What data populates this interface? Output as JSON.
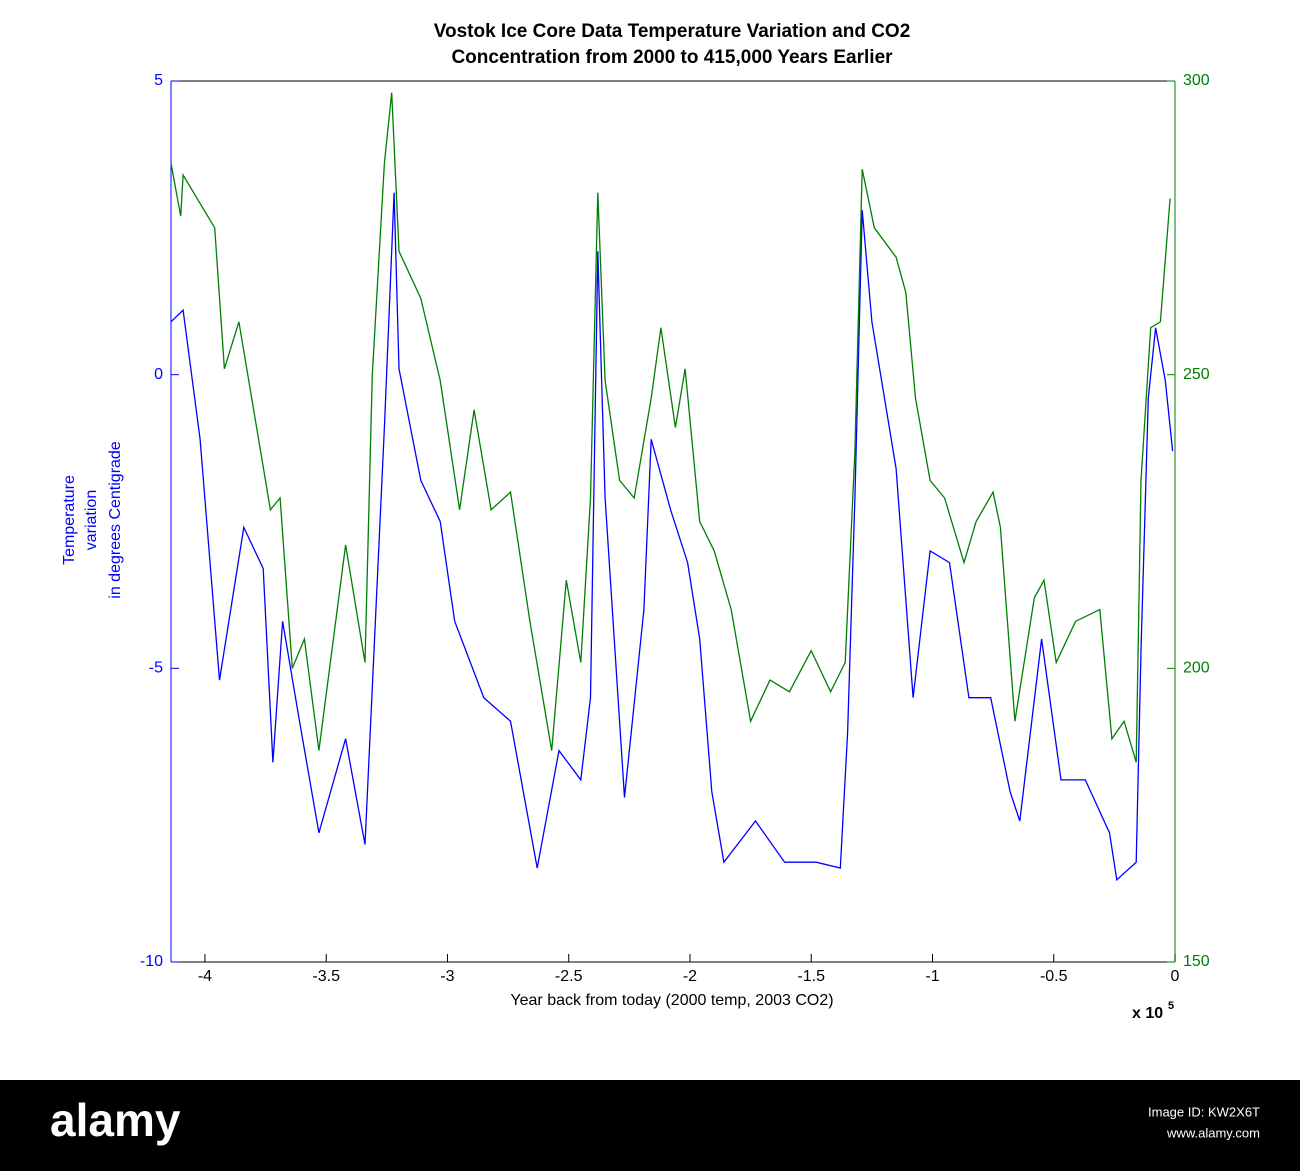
{
  "chart_data": {
    "type": "line",
    "title": [
      "Vostok Ice Core Data Temperature Variation and CO2",
      "Concentration from 2000 to 415,000 Years Earlier"
    ],
    "xlabel": "Year back from today (2000 temp, 2003 CO2)",
    "xlabel_multiplier": "x 10",
    "xlabel_exponent": "5",
    "ylabel": [
      "Temperature",
      "variation",
      "in degrees Centigrade"
    ],
    "xlim": [
      -414000,
      0
    ],
    "xticks": [
      {
        "value": -400000,
        "label": "-4"
      },
      {
        "value": -350000,
        "label": "-3.5"
      },
      {
        "value": -300000,
        "label": "-3"
      },
      {
        "value": -250000,
        "label": "-2.5"
      },
      {
        "value": -200000,
        "label": "-2"
      },
      {
        "value": -150000,
        "label": "-1.5"
      },
      {
        "value": -100000,
        "label": "-1"
      },
      {
        "value": -50000,
        "label": "-0.5"
      },
      0
    ],
    "ylim": [
      -10,
      5
    ],
    "yticks": [
      -10,
      -5,
      0,
      5
    ],
    "y2lim": [
      150,
      300
    ],
    "y2ticks": [
      150,
      200,
      250,
      300
    ],
    "y_color": "#0000ff",
    "y2_color": "#007f00",
    "series": [
      {
        "color": "#0000ff",
        "x": [
          -414000,
          -409000,
          -402000,
          -394000,
          -384000,
          -376000,
          -372000,
          -368000,
          -361000,
          -353000,
          -342000,
          -334000,
          -326000,
          -322000,
          -320000,
          -311000,
          -303000,
          -297000,
          -285000,
          -274000,
          -263000,
          -254000,
          -245000,
          -241000,
          -238000,
          -235000,
          -227000,
          -219000,
          -216000,
          -208000,
          -201000,
          -196000,
          -191000,
          -186000,
          -173000,
          -161000,
          -148000,
          -138000,
          -135000,
          -132000,
          -129000,
          -125000,
          -115000,
          -108000,
          -101000,
          -93000,
          -85000,
          -76000,
          -68000,
          -64000,
          -55000,
          -47000,
          -37000,
          -27000,
          -24000,
          -16000,
          -14000,
          -11000,
          -8000,
          -4000,
          -1000
        ],
        "values": [
          0.9,
          1.1,
          -1.1,
          -5.2,
          -2.6,
          -3.3,
          -6.6,
          -4.2,
          -5.9,
          -7.8,
          -6.2,
          -8.0,
          -0.9,
          3.1,
          0.1,
          -1.8,
          -2.5,
          -4.2,
          -5.5,
          -5.9,
          -8.4,
          -6.4,
          -6.9,
          -5.5,
          2.1,
          -2.1,
          -7.2,
          -4.0,
          -1.1,
          -2.3,
          -3.2,
          -4.5,
          -7.1,
          -8.3,
          -7.6,
          -8.3,
          -8.3,
          -8.4,
          -6.1,
          -2.1,
          2.8,
          0.9,
          -1.6,
          -5.5,
          -3.0,
          -3.2,
          -5.5,
          -5.5,
          -7.1,
          -7.6,
          -4.5,
          -6.9,
          -6.9,
          -7.8,
          -8.6,
          -8.3,
          -4.7,
          -0.4,
          0.8,
          -0.1,
          -1.3
        ]
      },
      {
        "color": "#007f00",
        "axis": "y2",
        "x": [
          -414000,
          -410000,
          -409000,
          -396000,
          -392000,
          -386000,
          -373000,
          -369000,
          -364000,
          -359000,
          -353000,
          -342000,
          -334000,
          -331000,
          -326000,
          -323000,
          -320000,
          -311000,
          -303000,
          -295000,
          -289000,
          -282000,
          -274000,
          -266000,
          -257000,
          -251000,
          -245000,
          -241000,
          -238000,
          -235000,
          -229000,
          -223000,
          -216000,
          -212000,
          -206000,
          -202000,
          -196000,
          -190000,
          -183000,
          -175000,
          -167000,
          -159000,
          -150000,
          -142000,
          -136000,
          -132000,
          -129000,
          -124000,
          -115000,
          -111000,
          -107000,
          -101000,
          -95000,
          -87000,
          -82000,
          -75000,
          -72000,
          -66000,
          -58000,
          -54000,
          -49000,
          -41000,
          -31000,
          -26000,
          -21000,
          -16000,
          -14000,
          -10000,
          -6000,
          -2000
        ],
        "values": [
          286,
          277,
          284,
          275,
          251,
          259,
          227,
          229,
          200,
          205,
          186,
          221,
          201,
          250,
          286,
          298,
          271,
          263,
          249,
          227,
          244,
          227,
          230,
          208,
          186,
          215,
          201,
          229,
          281,
          249,
          232,
          229,
          246,
          258,
          241,
          251,
          225,
          220,
          210,
          191,
          198,
          196,
          203,
          196,
          201,
          237,
          285,
          275,
          270,
          264,
          246,
          232,
          229,
          218,
          225,
          230,
          224,
          191,
          212,
          215,
          201,
          208,
          210,
          188,
          191,
          184,
          232,
          258,
          259,
          280
        ]
      }
    ]
  },
  "watermark": {
    "brand": "alamy",
    "image_id": "Image ID: KW2X6T",
    "site": "www.alamy.com"
  }
}
